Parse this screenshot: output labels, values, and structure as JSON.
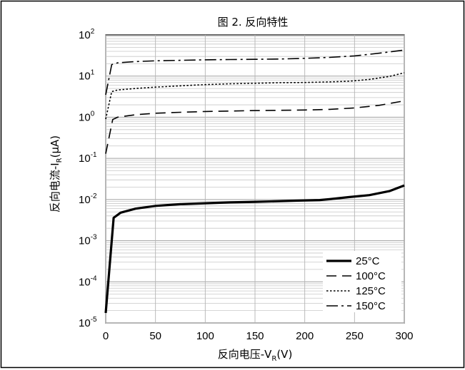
{
  "chart_data": {
    "type": "line",
    "title": "图 2. 反向特性",
    "xlabel": {
      "main": "反向电压-V",
      "sub": "R",
      "tail": "(V)"
    },
    "ylabel": {
      "main": "反向电流-I",
      "sub": "R",
      "tail": "(μA)"
    },
    "xlim": [
      0,
      300
    ],
    "ylim": [
      1e-05,
      100
    ],
    "yscale": "log",
    "grid": true,
    "legend_position": "bottom-right",
    "x_ticks": [
      "0",
      "50",
      "100",
      "150",
      "200",
      "250",
      "300"
    ],
    "y_ticks": [
      {
        "base": "10",
        "exp": "-5"
      },
      {
        "base": "10",
        "exp": "-4"
      },
      {
        "base": "10",
        "exp": "-3"
      },
      {
        "base": "10",
        "exp": "-2"
      },
      {
        "base": "10",
        "exp": "-1"
      },
      {
        "base": "10",
        "exp": "0"
      },
      {
        "base": "10",
        "exp": "1"
      },
      {
        "base": "10",
        "exp": "2"
      }
    ],
    "series": [
      {
        "name": "25°C",
        "style": "solid-thick",
        "points": [
          [
            0,
            1.75e-05
          ],
          [
            8,
            0.0036
          ],
          [
            15,
            0.0048
          ],
          [
            30,
            0.006
          ],
          [
            50,
            0.007
          ],
          [
            75,
            0.0077
          ],
          [
            100,
            0.0081
          ],
          [
            125,
            0.0085
          ],
          [
            150,
            0.0088
          ],
          [
            175,
            0.0091
          ],
          [
            200,
            0.0095
          ],
          [
            215,
            0.0097
          ],
          [
            225,
            0.0102
          ],
          [
            245,
            0.0115
          ],
          [
            265,
            0.0128
          ],
          [
            285,
            0.016
          ],
          [
            300,
            0.022
          ]
        ]
      },
      {
        "name": "100°C",
        "style": "dashed",
        "points": [
          [
            0,
            0.13
          ],
          [
            7,
            0.88
          ],
          [
            12,
            1.0
          ],
          [
            30,
            1.15
          ],
          [
            50,
            1.25
          ],
          [
            75,
            1.32
          ],
          [
            100,
            1.38
          ],
          [
            150,
            1.45
          ],
          [
            200,
            1.5
          ],
          [
            225,
            1.55
          ],
          [
            250,
            1.68
          ],
          [
            275,
            1.95
          ],
          [
            300,
            2.5
          ]
        ]
      },
      {
        "name": "125°C",
        "style": "dotted",
        "points": [
          [
            0,
            0.9
          ],
          [
            6,
            4.2
          ],
          [
            12,
            4.6
          ],
          [
            30,
            5.0
          ],
          [
            50,
            5.4
          ],
          [
            75,
            5.8
          ],
          [
            100,
            6.2
          ],
          [
            125,
            6.5
          ],
          [
            150,
            6.7
          ],
          [
            175,
            6.9
          ],
          [
            200,
            7.0
          ],
          [
            225,
            7.2
          ],
          [
            245,
            7.5
          ],
          [
            265,
            8.3
          ],
          [
            285,
            9.8
          ],
          [
            300,
            12
          ]
        ]
      },
      {
        "name": "150°C",
        "style": "dashdot",
        "points": [
          [
            0,
            3.5
          ],
          [
            6,
            19
          ],
          [
            12,
            21
          ],
          [
            30,
            22.5
          ],
          [
            50,
            23.5
          ],
          [
            75,
            24.2
          ],
          [
            100,
            24.8
          ],
          [
            125,
            25.2
          ],
          [
            150,
            25.6
          ],
          [
            175,
            26
          ],
          [
            200,
            27
          ],
          [
            225,
            28.5
          ],
          [
            250,
            31
          ],
          [
            275,
            36
          ],
          [
            300,
            43
          ]
        ]
      }
    ]
  }
}
